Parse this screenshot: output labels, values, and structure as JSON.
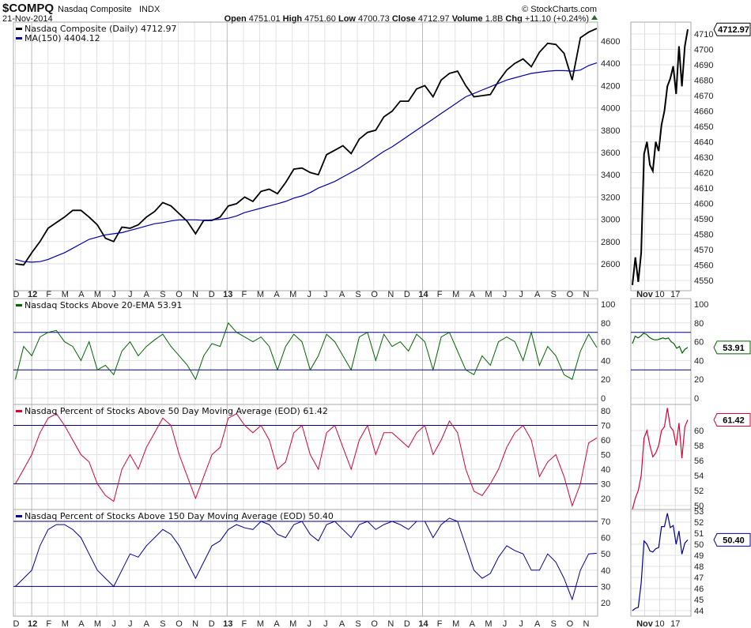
{
  "header": {
    "symbol": "$COMPQ",
    "name": "Nasdaq Composite",
    "exchange": "INDX",
    "date": "21-Nov-2014",
    "copyright": "© StockCharts.com",
    "open_label": "Open",
    "open": "4751.01",
    "high_label": "High",
    "high": "4751.60",
    "low_label": "Low",
    "low": "4700.73",
    "close_label": "Close",
    "close": "4712.97",
    "volume_label": "Volume",
    "volume": "1.8B",
    "chg_label": "Chg",
    "chg": "+11.10 (+0.24%)"
  },
  "colors": {
    "price": "#000000",
    "ma": "#0000aa",
    "ema20": "#006600",
    "dma50": "#dd0033",
    "dma150": "#000099",
    "hline": "#000080"
  },
  "chart_data": [
    {
      "type": "line",
      "title": "Nasdaq Composite (Daily) 4712.97",
      "months": [
        "D",
        "12",
        "F",
        "M",
        "A",
        "M",
        "J",
        "J",
        "A",
        "S",
        "O",
        "N",
        "D",
        "13",
        "F",
        "M",
        "A",
        "M",
        "J",
        "J",
        "A",
        "S",
        "O",
        "N",
        "D",
        "14",
        "F",
        "M",
        "A",
        "M",
        "J",
        "J",
        "A",
        "S",
        "O",
        "N"
      ],
      "yticks": [
        2600,
        2800,
        3000,
        3200,
        3400,
        3600,
        3800,
        4000,
        4200,
        4400,
        4600
      ],
      "ylim": [
        2480,
        4780
      ],
      "series": [
        {
          "name": "Nasdaq Composite (Daily) 4712.97",
          "values": [
            2600,
            2590,
            2700,
            2800,
            2920,
            2970,
            3020,
            3080,
            3080,
            3020,
            2950,
            2830,
            2800,
            2930,
            2920,
            2950,
            3020,
            3070,
            3150,
            3120,
            3050,
            2980,
            2870,
            2990,
            2990,
            3020,
            3120,
            3140,
            3200,
            3160,
            3250,
            3270,
            3230,
            3330,
            3450,
            3460,
            3420,
            3400,
            3580,
            3620,
            3660,
            3590,
            3720,
            3780,
            3800,
            3920,
            3970,
            4060,
            4060,
            4170,
            4200,
            4100,
            4250,
            4310,
            4330,
            4200,
            4100,
            4110,
            4120,
            4240,
            4340,
            4400,
            4440,
            4370,
            4500,
            4580,
            4570,
            4490,
            4250,
            4630,
            4680,
            4712.97
          ]
        },
        {
          "name": "MA(150) 4404.12",
          "values": [
            2640,
            2620,
            2615,
            2620,
            2640,
            2670,
            2700,
            2740,
            2780,
            2820,
            2840,
            2860,
            2870,
            2880,
            2900,
            2920,
            2940,
            2960,
            2970,
            2985,
            2995,
            2995,
            2995,
            2990,
            2995,
            3000,
            3010,
            3030,
            3060,
            3080,
            3100,
            3120,
            3140,
            3160,
            3190,
            3210,
            3240,
            3280,
            3310,
            3340,
            3380,
            3420,
            3460,
            3510,
            3560,
            3610,
            3650,
            3700,
            3750,
            3800,
            3850,
            3900,
            3950,
            4000,
            4050,
            4100,
            4130,
            4160,
            4190,
            4220,
            4250,
            4270,
            4290,
            4310,
            4320,
            4330,
            4335,
            4335,
            4330,
            4340,
            4380,
            4404.12
          ]
        }
      ],
      "detail": {
        "xticks": [
          "Nov",
          "10",
          "17"
        ],
        "yticks": [
          4550,
          4560,
          4570,
          4580,
          4590,
          4600,
          4610,
          4620,
          4630,
          4640,
          4650,
          4660,
          4670,
          4680,
          4690,
          4700,
          4710
        ],
        "values": [
          4547,
          4565,
          4549,
          4568,
          4632,
          4640,
          4625,
          4621,
          4640,
          4634,
          4651,
          4660,
          4676,
          4681,
          4689,
          4671,
          4702,
          4676,
          4702,
          4712.97
        ],
        "badge": "4712.97"
      }
    },
    {
      "type": "line",
      "title": "Nasdaq Stocks Above 20-EMA 53.91",
      "yticks": [
        0,
        20,
        40,
        60,
        80,
        100
      ],
      "hlines": [
        70,
        30
      ],
      "ylim": [
        0,
        100
      ],
      "values": [
        20,
        55,
        45,
        65,
        70,
        72,
        60,
        55,
        40,
        60,
        30,
        35,
        25,
        50,
        60,
        45,
        55,
        62,
        68,
        55,
        45,
        35,
        20,
        45,
        58,
        55,
        80,
        70,
        65,
        60,
        65,
        55,
        30,
        55,
        68,
        60,
        30,
        45,
        68,
        60,
        45,
        30,
        65,
        70,
        40,
        68,
        55,
        60,
        50,
        68,
        60,
        30,
        65,
        70,
        50,
        30,
        25,
        45,
        35,
        60,
        65,
        60,
        40,
        70,
        35,
        55,
        45,
        25,
        20,
        50,
        68,
        53.91
      ],
      "detail": {
        "yticks": [
          0,
          20,
          40,
          60,
          80,
          100
        ],
        "values": [
          58,
          66,
          64,
          66,
          69,
          68,
          65,
          63,
          62,
          62,
          63,
          64,
          63,
          64,
          60,
          58,
          53,
          55,
          48,
          52,
          53.91
        ],
        "badge": "53.91"
      }
    },
    {
      "type": "line",
      "title": "Nasdaq Percent of Stocks Above 50 Day Moving Average (EOD) 61.42",
      "yticks": [
        20,
        30,
        40,
        50,
        60,
        70,
        80
      ],
      "hlines": [
        70,
        30
      ],
      "ylim": [
        15,
        82
      ],
      "values": [
        30,
        40,
        50,
        65,
        75,
        78,
        70,
        60,
        50,
        45,
        30,
        22,
        18,
        40,
        50,
        40,
        55,
        65,
        75,
        70,
        50,
        35,
        20,
        35,
        50,
        55,
        75,
        78,
        70,
        65,
        70,
        60,
        40,
        45,
        65,
        70,
        50,
        40,
        65,
        70,
        55,
        40,
        60,
        70,
        50,
        65,
        65,
        60,
        55,
        65,
        70,
        50,
        60,
        73,
        65,
        40,
        25,
        22,
        30,
        40,
        55,
        65,
        70,
        60,
        35,
        45,
        50,
        35,
        15,
        30,
        58,
        61.42
      ],
      "detail": {
        "yticks": [
          50,
          52,
          54,
          56,
          58,
          60
        ],
        "values": [
          49.5,
          51,
          52,
          54,
          59,
          60,
          58,
          56.5,
          57,
          58,
          60,
          60.5,
          63,
          60.5,
          60,
          58,
          61,
          56.3,
          60.5,
          61.42
        ],
        "badge": "61.42"
      }
    },
    {
      "type": "line",
      "title": "Nasdaq Percent of Stocks Above 150 Day Moving Average (EOD) 50.40",
      "yticks": [
        20,
        30,
        40,
        50,
        60,
        70
      ],
      "hlines": [
        70,
        30
      ],
      "ylim": [
        15,
        75
      ],
      "values": [
        30,
        35,
        40,
        55,
        65,
        68,
        68,
        65,
        60,
        50,
        40,
        35,
        30,
        40,
        50,
        48,
        55,
        60,
        65,
        62,
        55,
        45,
        35,
        45,
        55,
        58,
        65,
        68,
        66,
        65,
        70,
        68,
        62,
        60,
        68,
        70,
        62,
        58,
        68,
        70,
        65,
        60,
        68,
        70,
        65,
        68,
        70,
        68,
        65,
        70,
        70,
        60,
        68,
        72,
        70,
        55,
        40,
        35,
        38,
        48,
        55,
        52,
        50,
        40,
        40,
        50,
        45,
        35,
        22,
        40,
        50,
        50.4
      ],
      "detail": {
        "yticks": [
          44,
          45,
          46,
          47,
          48,
          49,
          50,
          51,
          52,
          53
        ],
        "values": [
          44,
          44.2,
          44.3,
          46.5,
          50.3,
          50,
          49.4,
          49.3,
          49.6,
          49.7,
          51.6,
          51.6,
          52.8,
          51.5,
          51.7,
          50,
          51.2,
          49.1,
          50.1,
          50.4
        ],
        "badge": "50.40"
      }
    }
  ]
}
